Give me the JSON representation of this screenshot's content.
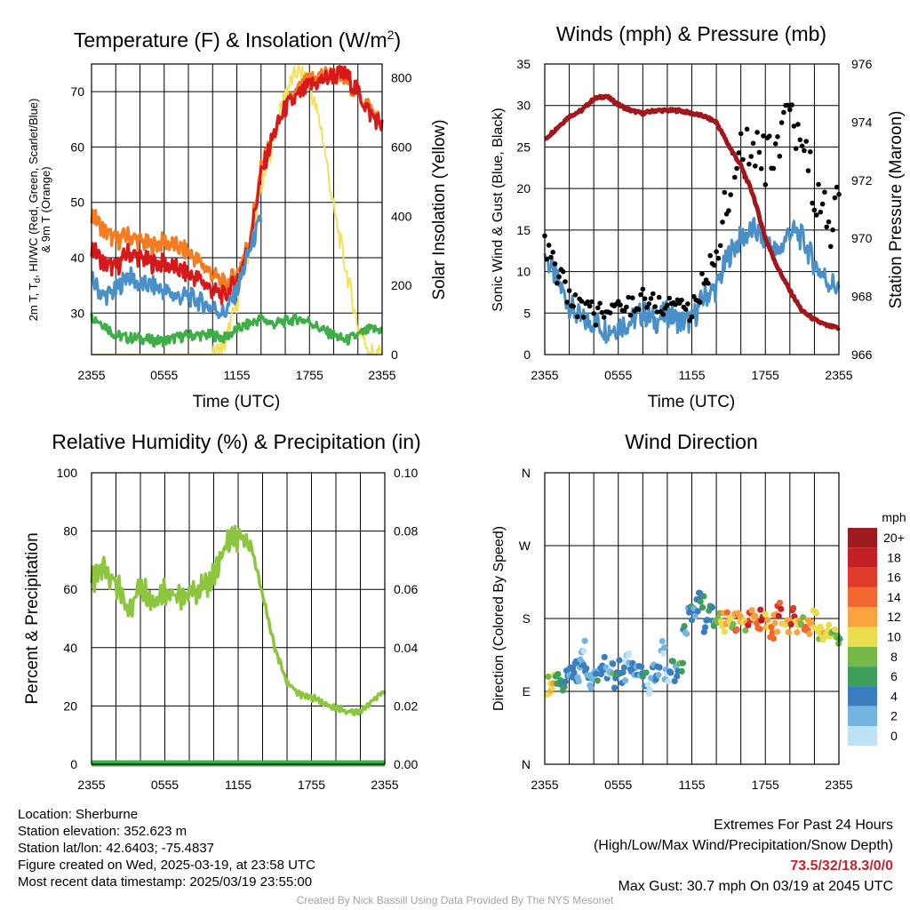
{
  "panels": {
    "temp": {
      "title_main": "Temperature (F) & Insolation (W/m",
      "title_sup": "2",
      "title_end": ")",
      "ylabel_line1_parts": [
        "2m T, T",
        "d",
        ", HI/WC (Red, Green, Scarlet/Blue)"
      ],
      "ylabel_line2": "& 9m T (Orange)",
      "y2label": "Solar Insolation (Yellow)",
      "xlabel": "Time (UTC)"
    },
    "wind": {
      "title": "Winds (mph) & Pressure (mb)",
      "ylabel": "Sonic Wind & Gust (Blue, Black)",
      "y2label": "Station Pressure (Maroon)",
      "xlabel": "Time (UTC)"
    },
    "rh": {
      "title": "Relative Humidity (%) & Precipitation (in)",
      "ylabel": "Percent & Precipitation"
    },
    "dir": {
      "title": "Wind Direction",
      "ylabel": "Direction (Colored By Speed)",
      "colorbar_title": "mph",
      "colorbar_labels": [
        "20+",
        "18",
        "16",
        "14",
        "12",
        "10",
        "8",
        "6",
        "4",
        "2",
        "0"
      ],
      "colorbar_colors": [
        "#9e1a1e",
        "#c62026",
        "#e03a2b",
        "#f06730",
        "#f8a33f",
        "#e9dd4f",
        "#77b948",
        "#3f9e5c",
        "#3a7ebf",
        "#74b4e2",
        "#bfe3f6"
      ]
    }
  },
  "footer": {
    "location": "Location: Sherburne",
    "elevation": "Station elevation: 352.623 m",
    "latlon": "Station lat/lon: 42.6403; -75.4837",
    "created": "Figure created on Wed, 2025-03-19, at 23:58 UTC",
    "recent": "Most recent data timestamp: 2025/03/19 23:55:00",
    "extremes_title": "Extremes For Past 24 Hours",
    "extremes_sub": "(High/Low/Max Wind/Precipitation/Snow Depth)",
    "extremes_values": "73.5/32/18.3/0/0",
    "max_gust": "Max Gust: 30.7 mph On 03/19 at 2045 UTC",
    "credit": "Created By Nick Bassill Using Data Provided By The NYS Mesonet"
  },
  "chart_data": [
    {
      "type": "line",
      "title": "Temperature (F) & Insolation (W/m2)",
      "xlabel": "Time (UTC)",
      "ylabel": "2m T, Td, HI/WC (Red, Green, Scarlet/Blue) & 9m T (Orange)",
      "y2label": "Solar Insolation (Yellow)",
      "x_ticks": [
        "2355",
        "0555",
        "1155",
        "1755",
        "2355"
      ],
      "ylim": [
        22.5,
        75
      ],
      "y_ticks": [
        30,
        40,
        50,
        60,
        70
      ],
      "y2lim": [
        0,
        840
      ],
      "y2_ticks": [
        0,
        200,
        400,
        600,
        800
      ],
      "grid": true,
      "x_hours": [
        0,
        1,
        2,
        3,
        4,
        5,
        6,
        7,
        8,
        9,
        10,
        11,
        12,
        13,
        14,
        15,
        16,
        17,
        18,
        19,
        20,
        21,
        22,
        23,
        24
      ],
      "series": [
        {
          "name": "2m T",
          "color": "#d7191c",
          "axis": "left",
          "values": [
            42,
            39,
            38,
            41,
            40,
            39,
            39,
            38,
            37,
            36,
            34,
            33,
            36,
            42,
            55,
            62,
            67,
            69,
            71,
            72,
            73,
            73,
            70,
            66,
            64
          ]
        },
        {
          "name": "9m T",
          "color": "#f57c20",
          "axis": "left",
          "values": [
            48,
            45,
            43,
            44,
            43,
            42,
            43,
            42,
            41,
            39,
            37,
            35,
            37,
            43,
            56,
            62,
            67,
            70,
            72,
            73,
            73,
            72,
            70,
            67,
            64
          ]
        },
        {
          "name": "Td",
          "color": "#3fae49",
          "axis": "left",
          "values": [
            29.5,
            28,
            26,
            25.5,
            25.5,
            25,
            25,
            25.5,
            26,
            26,
            26,
            25.5,
            27,
            28,
            29,
            28,
            28.5,
            29,
            28.5,
            27,
            26,
            25,
            26,
            27,
            27
          ]
        },
        {
          "name": "HI/WC",
          "color": "#4a90c8",
          "axis": "left",
          "values": [
            36,
            33,
            34,
            37,
            35,
            35,
            34,
            33,
            33,
            32,
            31,
            30,
            34,
            41,
            47,
            null,
            null,
            null,
            null,
            null,
            null,
            null,
            null,
            null,
            null
          ]
        },
        {
          "name": "Solar Insolation",
          "color": "#f6e05a",
          "axis": "right",
          "values": [
            0,
            0,
            0,
            0,
            0,
            0,
            0,
            0,
            0,
            0,
            0,
            30,
            150,
            300,
            480,
            620,
            760,
            820,
            780,
            650,
            420,
            250,
            80,
            10,
            0
          ]
        }
      ]
    },
    {
      "type": "line",
      "title": "Winds (mph) & Pressure (mb)",
      "xlabel": "Time (UTC)",
      "ylabel": "Sonic Wind & Gust (Blue, Black)",
      "y2label": "Station Pressure (Maroon)",
      "x_ticks": [
        "2355",
        "0555",
        "1155",
        "1755",
        "2355"
      ],
      "ylim": [
        0,
        35
      ],
      "y_ticks": [
        0,
        5,
        10,
        15,
        20,
        25,
        30,
        35
      ],
      "y2lim": [
        966,
        976
      ],
      "y2_ticks": [
        966,
        968,
        970,
        972,
        974,
        976
      ],
      "grid": true,
      "x_hours": [
        0,
        1,
        2,
        3,
        4,
        5,
        6,
        7,
        8,
        9,
        10,
        11,
        12,
        13,
        14,
        15,
        16,
        17,
        18,
        19,
        20,
        21,
        22,
        23,
        24
      ],
      "series": [
        {
          "name": "Sonic Wind",
          "color": "#4a90c8",
          "axis": "left",
          "values": [
            12,
            9,
            6,
            4,
            4,
            3,
            3.5,
            4,
            5,
            4,
            5,
            4,
            4,
            7,
            8,
            12,
            14,
            15,
            14,
            12,
            15,
            14,
            11,
            9,
            8
          ]
        },
        {
          "name": "Gust",
          "color": "#000000",
          "axis": "left",
          "values": [
            13,
            10,
            7,
            5.5,
            5,
            5,
            5.5,
            6,
            7,
            6,
            6,
            6.5,
            5,
            9,
            12,
            20,
            25,
            24,
            23,
            24,
            28,
            26,
            20,
            16,
            17
          ]
        },
        {
          "name": "Station Pressure",
          "color": "#a3161c",
          "axis": "right",
          "values": [
            973.4,
            973.8,
            974.2,
            974.4,
            974.8,
            974.9,
            974.6,
            974.4,
            974.3,
            974.4,
            974.4,
            974.4,
            974.3,
            974.2,
            974.0,
            973.2,
            972.5,
            971.5,
            970.0,
            969.0,
            968.2,
            967.5,
            967.2,
            967.0,
            966.9
          ]
        }
      ]
    },
    {
      "type": "line",
      "title": "Relative Humidity (%) & Precipitation (in)",
      "ylabel": "Percent & Precipitation",
      "x_ticks": [
        "2355",
        "0555",
        "1155",
        "1755",
        "2355"
      ],
      "ylim": [
        0,
        100
      ],
      "y_ticks": [
        0,
        20,
        40,
        60,
        80,
        100
      ],
      "y2lim": [
        0,
        0.1
      ],
      "y2_ticks": [
        "0.00",
        "0.02",
        "0.04",
        "0.06",
        "0.08",
        "0.10"
      ],
      "grid": true,
      "x_hours": [
        0,
        1,
        2,
        3,
        4,
        5,
        6,
        7,
        8,
        9,
        10,
        11,
        12,
        13,
        14,
        15,
        16,
        17,
        18,
        19,
        20,
        21,
        22,
        23,
        24
      ],
      "series": [
        {
          "name": "Relative Humidity",
          "color": "#8cc63f",
          "axis": "left",
          "values": [
            62,
            68,
            62,
            52,
            62,
            56,
            60,
            57,
            59,
            60,
            64,
            75,
            78,
            76,
            58,
            40,
            28,
            24,
            23,
            21,
            19,
            18,
            18,
            22,
            25
          ]
        },
        {
          "name": "Precipitation",
          "color": "#3fae49",
          "axis": "right",
          "values": [
            0,
            0,
            0,
            0,
            0,
            0,
            0,
            0,
            0,
            0,
            0,
            0,
            0,
            0,
            0,
            0,
            0,
            0,
            0,
            0,
            0,
            0,
            0,
            0,
            0
          ]
        }
      ]
    },
    {
      "type": "scatter",
      "title": "Wind Direction",
      "ylabel": "Direction (Colored By Speed)",
      "x_ticks": [
        "2355",
        "0555",
        "1155",
        "1755",
        "2355"
      ],
      "y_ticks": [
        "N",
        "E",
        "S",
        "W",
        "N"
      ],
      "ylim_deg": [
        0,
        360
      ],
      "grid": true,
      "colorbar": {
        "title": "mph",
        "labels": [
          "0",
          "2",
          "4",
          "6",
          "8",
          "10",
          "12",
          "14",
          "16",
          "18",
          "20+"
        ]
      },
      "points": [
        {
          "h": 0.2,
          "deg": 98,
          "mph": 10
        },
        {
          "h": 0.5,
          "deg": 99,
          "mph": 11
        },
        {
          "h": 0.9,
          "deg": 101,
          "mph": 6
        },
        {
          "h": 1.2,
          "deg": 100,
          "mph": 6
        },
        {
          "h": 1.6,
          "deg": 104,
          "mph": 5
        },
        {
          "h": 2.0,
          "deg": 108,
          "mph": 4
        },
        {
          "h": 2.3,
          "deg": 120,
          "mph": 4
        },
        {
          "h": 2.6,
          "deg": 112,
          "mph": 3
        },
        {
          "h": 2.9,
          "deg": 130,
          "mph": 3
        },
        {
          "h": 3.0,
          "deg": 150,
          "mph": 2
        },
        {
          "h": 3.3,
          "deg": 118,
          "mph": 4
        },
        {
          "h": 3.6,
          "deg": 105,
          "mph": 3
        },
        {
          "h": 3.9,
          "deg": 115,
          "mph": 2
        },
        {
          "h": 4.3,
          "deg": 112,
          "mph": 4
        },
        {
          "h": 4.6,
          "deg": 122,
          "mph": 3
        },
        {
          "h": 5.0,
          "deg": 110,
          "mph": 2
        },
        {
          "h": 5.3,
          "deg": 125,
          "mph": 3
        },
        {
          "h": 5.6,
          "deg": 100,
          "mph": 6
        },
        {
          "h": 5.9,
          "deg": 118,
          "mph": 4
        },
        {
          "h": 6.3,
          "deg": 112,
          "mph": 3
        },
        {
          "h": 6.6,
          "deg": 128,
          "mph": 1
        },
        {
          "h": 6.9,
          "deg": 115,
          "mph": 4
        },
        {
          "h": 7.3,
          "deg": 110,
          "mph": 2
        },
        {
          "h": 7.7,
          "deg": 120,
          "mph": 3
        },
        {
          "h": 8.0,
          "deg": 108,
          "mph": 5
        },
        {
          "h": 8.4,
          "deg": 95,
          "mph": 0
        },
        {
          "h": 8.8,
          "deg": 115,
          "mph": 3
        },
        {
          "h": 9.1,
          "deg": 118,
          "mph": 4
        },
        {
          "h": 9.5,
          "deg": 145,
          "mph": 2
        },
        {
          "h": 9.8,
          "deg": 108,
          "mph": 1
        },
        {
          "h": 10.2,
          "deg": 120,
          "mph": 4
        },
        {
          "h": 10.6,
          "deg": 112,
          "mph": 3
        },
        {
          "h": 11.0,
          "deg": 125,
          "mph": 6
        },
        {
          "h": 11.3,
          "deg": 165,
          "mph": 4
        },
        {
          "h": 11.7,
          "deg": 190,
          "mph": 4
        },
        {
          "h": 12.0,
          "deg": 182,
          "mph": 2
        },
        {
          "h": 12.4,
          "deg": 200,
          "mph": 4
        },
        {
          "h": 12.7,
          "deg": 205,
          "mph": 6
        },
        {
          "h": 13.0,
          "deg": 175,
          "mph": 4
        },
        {
          "h": 13.4,
          "deg": 195,
          "mph": 5
        },
        {
          "h": 13.7,
          "deg": 180,
          "mph": 6
        },
        {
          "h": 14.0,
          "deg": 182,
          "mph": 8
        },
        {
          "h": 14.4,
          "deg": 175,
          "mph": 10
        },
        {
          "h": 14.8,
          "deg": 178,
          "mph": 12
        },
        {
          "h": 15.1,
          "deg": 170,
          "mph": 10
        },
        {
          "h": 15.5,
          "deg": 175,
          "mph": 14
        },
        {
          "h": 15.8,
          "deg": 180,
          "mph": 12
        },
        {
          "h": 16.2,
          "deg": 168,
          "mph": 10
        },
        {
          "h": 16.6,
          "deg": 176,
          "mph": 16
        },
        {
          "h": 16.9,
          "deg": 182,
          "mph": 12
        },
        {
          "h": 17.3,
          "deg": 170,
          "mph": 14
        },
        {
          "h": 17.6,
          "deg": 185,
          "mph": 18
        },
        {
          "h": 18.0,
          "deg": 178,
          "mph": 10
        },
        {
          "h": 18.4,
          "deg": 160,
          "mph": 14
        },
        {
          "h": 18.7,
          "deg": 175,
          "mph": 12
        },
        {
          "h": 19.0,
          "deg": 188,
          "mph": 16
        },
        {
          "h": 19.4,
          "deg": 180,
          "mph": 10
        },
        {
          "h": 19.8,
          "deg": 172,
          "mph": 12
        },
        {
          "h": 20.1,
          "deg": 184,
          "mph": 18
        },
        {
          "h": 20.5,
          "deg": 168,
          "mph": 10
        },
        {
          "h": 20.8,
          "deg": 176,
          "mph": 8
        },
        {
          "h": 21.2,
          "deg": 158,
          "mph": 14
        },
        {
          "h": 21.5,
          "deg": 172,
          "mph": 12
        },
        {
          "h": 21.9,
          "deg": 180,
          "mph": 10
        },
        {
          "h": 22.3,
          "deg": 165,
          "mph": 10
        },
        {
          "h": 22.6,
          "deg": 160,
          "mph": 10
        },
        {
          "h": 23.0,
          "deg": 162,
          "mph": 10
        },
        {
          "h": 23.4,
          "deg": 158,
          "mph": 8
        },
        {
          "h": 23.8,
          "deg": 155,
          "mph": 6
        }
      ]
    }
  ]
}
